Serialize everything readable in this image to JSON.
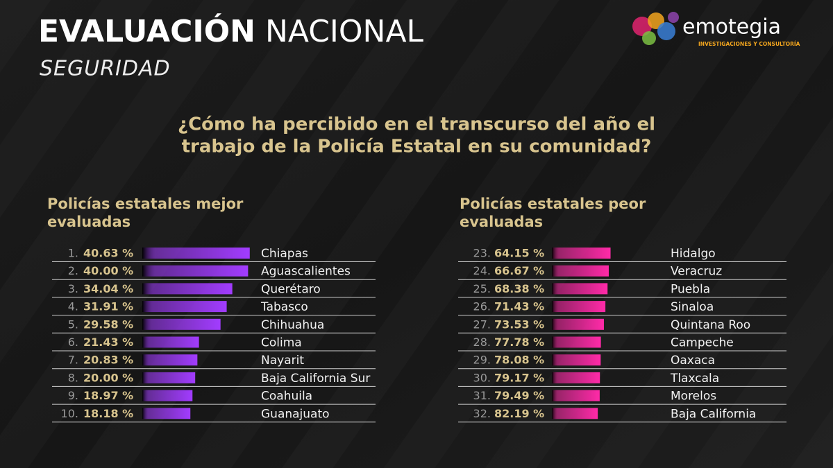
{
  "header": {
    "title_bold": "EVALUACIÓN",
    "title_light": "NACIONAL",
    "subtitle": "SEGURIDAD",
    "brand": "emotegia",
    "brand_tagline": "INVESTIGACIONES Y CONSULTORÍA"
  },
  "question": [
    "¿Cómo ha percibido en el transcurso del año el",
    "trabajo de la Policía Estatal en su comunidad?"
  ],
  "chart_data": [
    {
      "type": "bar",
      "orientation": "horizontal",
      "title": [
        "Policías estatales mejor",
        "evaluadas"
      ],
      "ranks": [
        "1.",
        "2.",
        "3.",
        "4.",
        "5.",
        "6.",
        "7.",
        "8.",
        "9.",
        "10."
      ],
      "categories": [
        "Chiapas",
        "Aguascalientes",
        "Querétaro",
        "Tabasco",
        "Chihuahua",
        "Colima",
        "Nayarit",
        "Baja California Sur",
        "Coahuila",
        "Guanajuato"
      ],
      "values": [
        40.63,
        40.0,
        34.04,
        31.91,
        29.58,
        21.43,
        20.83,
        20.0,
        18.97,
        18.18
      ],
      "value_labels": [
        "40.63 %",
        "40.00 %",
        "34.04 %",
        "31.91 %",
        "29.58 %",
        "21.43 %",
        "20.83 %",
        "20.00 %",
        "18.97 %",
        "18.18 %"
      ],
      "color": "#a23cff",
      "xlim": [
        0,
        42
      ]
    },
    {
      "type": "bar",
      "orientation": "horizontal",
      "title": [
        "Policías estatales peor",
        "evaluadas"
      ],
      "ranks": [
        "23.",
        "24.",
        "25.",
        "26.",
        "27.",
        "28.",
        "29.",
        "30.",
        "31.",
        "32."
      ],
      "categories": [
        "Hidalgo",
        "Veracruz",
        "Puebla",
        "Sinaloa",
        "Quintana Roo",
        "Campeche",
        "Oaxaca",
        "Tlaxcala",
        "Morelos",
        "Baja California"
      ],
      "values": [
        64.15,
        66.67,
        68.38,
        71.43,
        73.53,
        77.78,
        78.08,
        79.17,
        79.49,
        82.19
      ],
      "value_labels": [
        "64.15 %",
        "66.67 %",
        "68.38 %",
        "71.43 %",
        "73.53 %",
        "77.78 %",
        "78.08 %",
        "79.17 %",
        "79.49 %",
        "82.19 %"
      ],
      "color": "#ff2aa8",
      "xlim": [
        147,
        0
      ]
    }
  ]
}
